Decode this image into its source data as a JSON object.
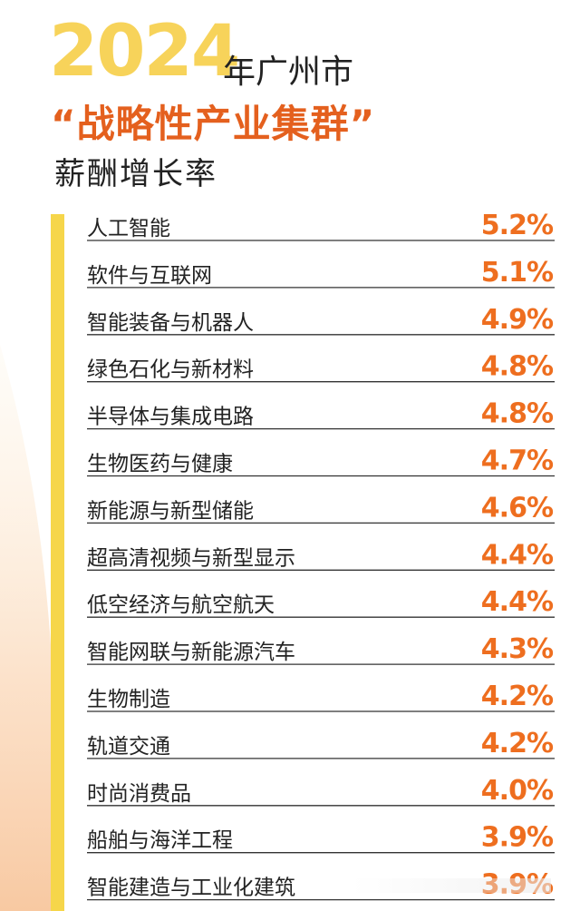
{
  "title": {
    "year": "2024",
    "city": "年广州市",
    "headline": "“战略性产业集群”",
    "subhead": "薪酬增长率"
  },
  "colors": {
    "year": "#f7d35a",
    "headline": "#e4601e",
    "value": "#ee6e1f",
    "accent_bar": "#f6d64a"
  },
  "chart_data": {
    "type": "table",
    "categories": [
      "人工智能",
      "软件与互联网",
      "智能装备与机器人",
      "绿色石化与新材料",
      "半导体与集成电路",
      "生物医药与健康",
      "新能源与新型储能",
      "超高清视频与新型显示",
      "低空经济与航空航天",
      "智能网联与新能源汽车",
      "生物制造",
      "轨道交通",
      "时尚消费品",
      "船舶与海洋工程",
      "智能建造与工业化建筑"
    ],
    "values": [
      5.2,
      5.1,
      4.9,
      4.8,
      4.8,
      4.7,
      4.6,
      4.4,
      4.4,
      4.3,
      4.2,
      4.2,
      4.0,
      3.9,
      3.9
    ],
    "value_labels": [
      "5.2%",
      "5.1%",
      "4.9%",
      "4.8%",
      "4.8%",
      "4.7%",
      "4.6%",
      "4.4%",
      "4.4%",
      "4.3%",
      "4.2%",
      "4.2%",
      "4.0%",
      "3.9%",
      "3.9%"
    ]
  }
}
